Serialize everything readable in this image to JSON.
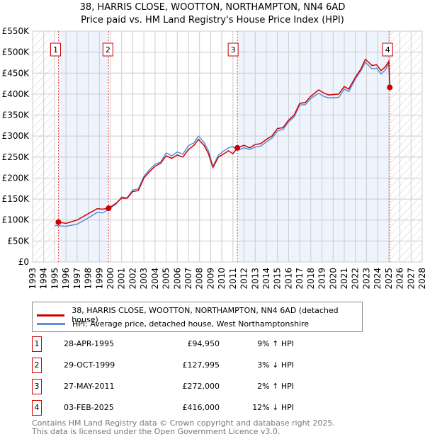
{
  "chart_data": {
    "type": "line",
    "title": "38, HARRIS CLOSE, WOOTTON, NORTHAMPTON, NN4 6AD",
    "subtitle": "Price paid vs. HM Land Registry's House Price Index (HPI)",
    "xlim": [
      1993,
      2028
    ],
    "ylim": [
      0,
      550000
    ],
    "yticks": [
      "£0",
      "£50K",
      "£100K",
      "£150K",
      "£200K",
      "£250K",
      "£300K",
      "£350K",
      "£400K",
      "£450K",
      "£500K",
      "£550K"
    ],
    "xticks": [
      "1993",
      "1994",
      "1995",
      "1996",
      "1997",
      "1998",
      "1999",
      "2000",
      "2001",
      "2002",
      "2003",
      "2004",
      "2005",
      "2006",
      "2007",
      "2008",
      "2009",
      "2010",
      "2011",
      "2012",
      "2013",
      "2014",
      "2015",
      "2016",
      "2017",
      "2018",
      "2019",
      "2020",
      "2021",
      "2022",
      "2023",
      "2024",
      "2025",
      "2026",
      "2027",
      "2028"
    ],
    "series": [
      {
        "name": "38, HARRIS CLOSE, WOOTTON, NORTHAMPTON, NN4 6AD (detached house)",
        "color": "#cc0000",
        "points": [
          [
            1995.32,
            95000
          ],
          [
            1996,
            92000
          ],
          [
            1997,
            100000
          ],
          [
            1998,
            115000
          ],
          [
            1998.8,
            127000
          ],
          [
            1999.3,
            126000
          ],
          [
            1999.83,
            128000
          ],
          [
            2000.5,
            140000
          ],
          [
            2001,
            152000
          ],
          [
            2001.5,
            152000
          ],
          [
            2002,
            168000
          ],
          [
            2002.5,
            170000
          ],
          [
            2003,
            200000
          ],
          [
            2003.5,
            215000
          ],
          [
            2004,
            228000
          ],
          [
            2004.5,
            235000
          ],
          [
            2005,
            253000
          ],
          [
            2005.5,
            247000
          ],
          [
            2006,
            255000
          ],
          [
            2006.5,
            250000
          ],
          [
            2007,
            268000
          ],
          [
            2007.5,
            278000
          ],
          [
            2007.9,
            292000
          ],
          [
            2008.4,
            278000
          ],
          [
            2008.8,
            258000
          ],
          [
            2009.2,
            225000
          ],
          [
            2009.7,
            250000
          ],
          [
            2010.2,
            258000
          ],
          [
            2010.6,
            265000
          ],
          [
            2011.0,
            258000
          ],
          [
            2011.4,
            272000
          ],
          [
            2012,
            278000
          ],
          [
            2012.5,
            272000
          ],
          [
            2013,
            280000
          ],
          [
            2013.5,
            282000
          ],
          [
            2014,
            292000
          ],
          [
            2014.5,
            300000
          ],
          [
            2015,
            318000
          ],
          [
            2015.5,
            320000
          ],
          [
            2016,
            338000
          ],
          [
            2016.5,
            350000
          ],
          [
            2017,
            378000
          ],
          [
            2017.5,
            380000
          ],
          [
            2018,
            395000
          ],
          [
            2018.7,
            410000
          ],
          [
            2019.2,
            402000
          ],
          [
            2019.6,
            398000
          ],
          [
            2020.5,
            400000
          ],
          [
            2021,
            418000
          ],
          [
            2021.4,
            412000
          ],
          [
            2022,
            440000
          ],
          [
            2022.5,
            460000
          ],
          [
            2022.9,
            483000
          ],
          [
            2023.5,
            468000
          ],
          [
            2023.9,
            470000
          ],
          [
            2024.3,
            456000
          ],
          [
            2024.7,
            465000
          ],
          [
            2025.0,
            478000
          ],
          [
            2025.09,
            416000
          ]
        ]
      },
      {
        "name": "HPI: Average price, detached house, West Northamptonshire",
        "color": "#5b8fd6",
        "points": [
          [
            1995.0,
            87000
          ],
          [
            1995.5,
            86000
          ],
          [
            1996,
            85000
          ],
          [
            1997,
            90000
          ],
          [
            1998,
            105000
          ],
          [
            1998.8,
            118000
          ],
          [
            1999.3,
            117000
          ],
          [
            1999.83,
            125000
          ],
          [
            2000.5,
            138000
          ],
          [
            2001,
            155000
          ],
          [
            2001.5,
            153000
          ],
          [
            2002,
            172000
          ],
          [
            2002.5,
            174000
          ],
          [
            2003,
            204000
          ],
          [
            2003.5,
            220000
          ],
          [
            2004,
            233000
          ],
          [
            2004.5,
            238000
          ],
          [
            2005,
            260000
          ],
          [
            2005.5,
            253000
          ],
          [
            2006,
            262000
          ],
          [
            2006.5,
            257000
          ],
          [
            2007,
            277000
          ],
          [
            2007.5,
            284000
          ],
          [
            2007.9,
            300000
          ],
          [
            2008.4,
            285000
          ],
          [
            2008.8,
            265000
          ],
          [
            2009.2,
            228000
          ],
          [
            2009.7,
            255000
          ],
          [
            2010.2,
            265000
          ],
          [
            2010.6,
            272000
          ],
          [
            2011.0,
            275000
          ],
          [
            2011.4,
            266000
          ],
          [
            2012,
            272000
          ],
          [
            2012.5,
            268000
          ],
          [
            2013,
            274000
          ],
          [
            2013.5,
            276000
          ],
          [
            2014,
            286000
          ],
          [
            2014.5,
            295000
          ],
          [
            2015,
            312000
          ],
          [
            2015.5,
            316000
          ],
          [
            2016,
            334000
          ],
          [
            2016.5,
            346000
          ],
          [
            2017,
            374000
          ],
          [
            2017.5,
            375000
          ],
          [
            2018,
            390000
          ],
          [
            2018.7,
            402000
          ],
          [
            2019.2,
            394000
          ],
          [
            2019.6,
            391000
          ],
          [
            2020.5,
            392000
          ],
          [
            2021,
            412000
          ],
          [
            2021.4,
            406000
          ],
          [
            2022,
            436000
          ],
          [
            2022.5,
            456000
          ],
          [
            2022.9,
            476000
          ],
          [
            2023.5,
            460000
          ],
          [
            2023.9,
            462000
          ],
          [
            2024.3,
            448000
          ],
          [
            2024.7,
            458000
          ],
          [
            2025.0,
            472000
          ]
        ]
      }
    ],
    "sales": [
      {
        "id": "1",
        "x": 1995.32,
        "y": 94950
      },
      {
        "id": "2",
        "x": 1999.83,
        "y": 127995
      },
      {
        "id": "3",
        "x": 2011.4,
        "y": 272000
      },
      {
        "id": "4",
        "x": 2025.09,
        "y": 416000
      }
    ],
    "hatched_ranges": [
      [
        1993,
        1995.0
      ],
      [
        2025.09,
        2028
      ]
    ],
    "shaded_ranges": [
      [
        1995.32,
        1999.83
      ],
      [
        2011.4,
        2025.09
      ]
    ]
  },
  "legend": {
    "line1": "38, HARRIS CLOSE, WOOTTON, NORTHAMPTON, NN4 6AD (detached house)",
    "line2": "HPI: Average price, detached house, West Northamptonshire"
  },
  "table": [
    {
      "num": "1",
      "date": "28-APR-1995",
      "price": "£94,950",
      "hpi": "9% ↑ HPI"
    },
    {
      "num": "2",
      "date": "29-OCT-1999",
      "price": "£127,995",
      "hpi": "3% ↓ HPI"
    },
    {
      "num": "3",
      "date": "27-MAY-2011",
      "price": "£272,000",
      "hpi": "2% ↑ HPI"
    },
    {
      "num": "4",
      "date": "03-FEB-2025",
      "price": "£416,000",
      "hpi": "12% ↓ HPI"
    }
  ],
  "footer": {
    "line1": "Contains HM Land Registry data © Crown copyright and database right 2025.",
    "line2": "This data is licensed under the Open Government Licence v3.0."
  }
}
